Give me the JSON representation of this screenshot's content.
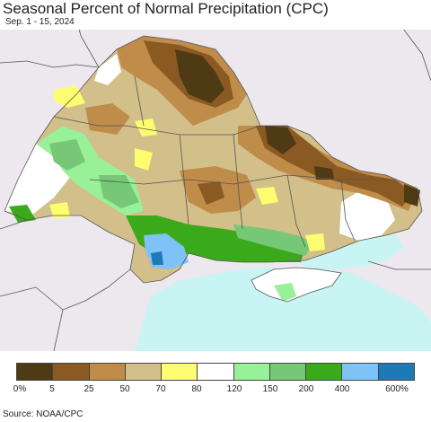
{
  "header": {
    "title": "Seasonal Percent of Normal Precipitation (CPC)",
    "subtitle": "Sep. 1 - 15, 2024"
  },
  "legend": {
    "colors": [
      "#4e3a14",
      "#8a5a22",
      "#bf8c4a",
      "#d2bf8a",
      "#fdfd70",
      "#ffffff",
      "#98f098",
      "#76c876",
      "#3aaa1a",
      "#7fc2f6",
      "#1e7ab6"
    ],
    "ticks": [
      "0%",
      "5",
      "25",
      "50",
      "70",
      "80",
      "120",
      "150",
      "200",
      "400",
      "600%"
    ]
  },
  "footer": {
    "source": "Source: NOAA/CPC"
  },
  "map_colors": {
    "background": "#ece8ee",
    "sea": "#c8f4f4",
    "border": "#555555"
  }
}
